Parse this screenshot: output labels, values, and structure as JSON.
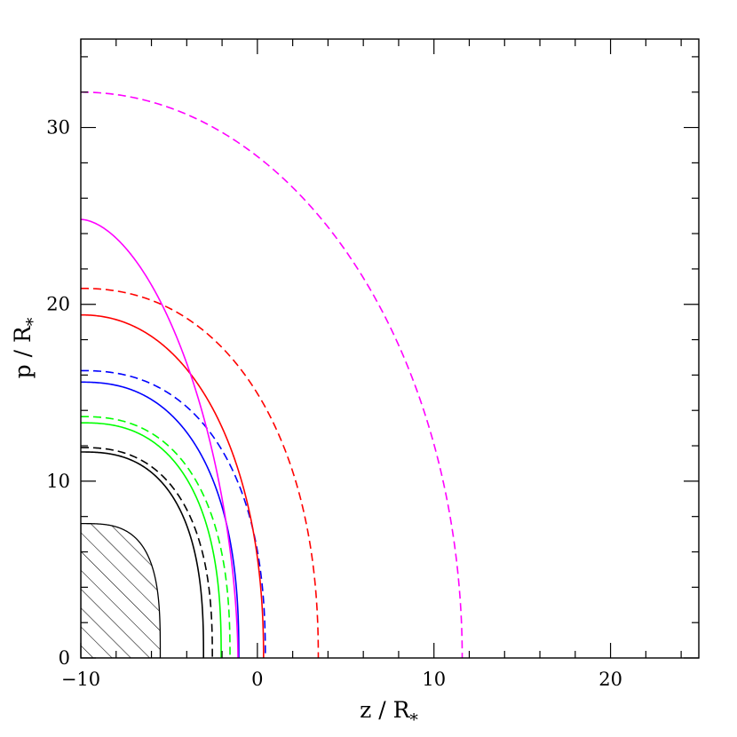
{
  "chart_data": {
    "type": "line",
    "title": "",
    "xlabel": "z / R",
    "xlabel_subscript": "*",
    "ylabel": "p / R",
    "ylabel_subscript": "*",
    "xlim": [
      -10,
      25
    ],
    "ylim": [
      0,
      35
    ],
    "x_ticks": [
      -10,
      0,
      10,
      20
    ],
    "x_tick_labels": [
      "−10",
      "0",
      "10",
      "20"
    ],
    "y_ticks": [
      0,
      10,
      20,
      30
    ],
    "y_tick_labels": [
      "0",
      "10",
      "20",
      "30"
    ],
    "grid": false,
    "hatched_region": {
      "description": "hatched core region",
      "shape": "superellipse",
      "z0": -10,
      "extent_z": 4.5,
      "extent_p": 7.6,
      "exponent": 3.2
    },
    "series": [
      {
        "color": "#000000",
        "dash": "solid",
        "z0": -10,
        "extent_z": 6.95,
        "extent_p": 11.65,
        "exponent": 2.6
      },
      {
        "color": "#000000",
        "dash": "dashed",
        "z0": -10,
        "extent_z": 7.45,
        "extent_p": 11.9,
        "exponent": 2.5
      },
      {
        "color": "#00ff00",
        "dash": "solid",
        "z0": -10,
        "extent_z": 7.95,
        "extent_p": 13.3,
        "exponent": 2.5
      },
      {
        "color": "#00ff00",
        "dash": "dashed",
        "z0": -10,
        "extent_z": 8.45,
        "extent_p": 13.65,
        "exponent": 2.45
      },
      {
        "color": "#0000ff",
        "dash": "solid",
        "z0": -10,
        "extent_z": 8.95,
        "extent_p": 15.6,
        "exponent": 2.4
      },
      {
        "color": "#0000ff",
        "dash": "dashed",
        "z0": -10,
        "extent_z": 10.45,
        "extent_p": 16.25,
        "exponent": 2.35
      },
      {
        "color": "#ff0000",
        "dash": "solid",
        "z0": -10,
        "extent_z": 10.35,
        "extent_p": 19.4,
        "exponent": 2.15
      },
      {
        "color": "#ff0000",
        "dash": "dashed",
        "z0": -10,
        "extent_z": 13.45,
        "extent_p": 20.9,
        "exponent": 2.2
      },
      {
        "color": "#ff00ff",
        "dash": "solid",
        "z0": -10,
        "extent_z": 8.9,
        "extent_p": 24.8,
        "exponent": 1.75
      },
      {
        "color": "#ff00ff",
        "dash": "dashed",
        "z0": -10,
        "extent_z": 21.6,
        "extent_p": 32.0,
        "exponent": 2.0
      }
    ]
  }
}
